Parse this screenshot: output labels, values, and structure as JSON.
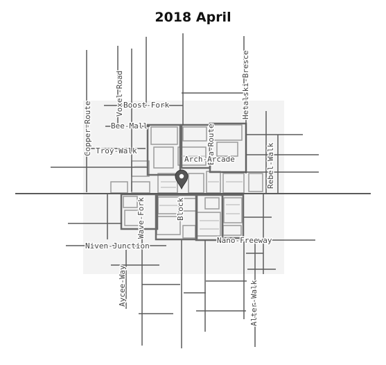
{
  "title": "2018 April",
  "map": {
    "marker_icon": "map-pin-icon",
    "colors": {
      "road": "#5a5a5a",
      "block": "#9a9a9a",
      "haze": "#f1f1f1",
      "label": "#444444",
      "marker": "#555555"
    },
    "road_labels": {
      "copper_route": "Copper-Route",
      "voxel_road": "Voxel-Road",
      "boost_fork": "Boost-Fork",
      "bee_mall": "Bee-Mall",
      "troy_walk": "Troy-Walk",
      "exa_route": "Exa-Route",
      "hetalski_bresce": "Hetalski-Bresce",
      "arch_arcade": "Arch-Arcade",
      "rebel_walk": "Rebel-Walk",
      "wave_fork": "Wave-Fork",
      "block": "Block",
      "nano_freeway": "Nano-Freeway",
      "niven_junction": "Niven-Junction",
      "aycee_way": "Aycee-Way",
      "alter_walk": "Alter-Walk"
    }
  }
}
